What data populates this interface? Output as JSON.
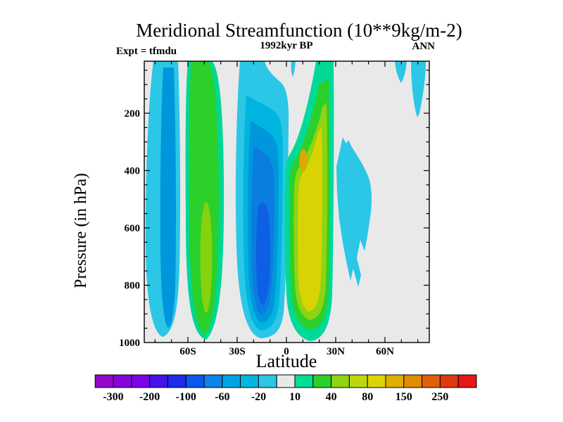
{
  "title": "Meridional Streamfunction (10**9kg/m-2)",
  "subtitle_left": "Expt = tfmdu",
  "subtitle_center": "1992kyr BP",
  "subtitle_right": "ANN",
  "axes": {
    "y_label": "Pressure (in hPa)",
    "x_label": "Latitude",
    "y_tick_labels": [
      "200",
      "400",
      "600",
      "800",
      "1000"
    ],
    "x_tick_labels": [
      "60S",
      "30S",
      "0",
      "30N",
      "60N"
    ]
  },
  "colorbar": {
    "labels": [
      "-300",
      "-200",
      "-100",
      "-60",
      "-20",
      "10",
      "40",
      "80",
      "150",
      "250"
    ],
    "colors": [
      "#9408c8",
      "#8806d4",
      "#7a04e4",
      "#4412e8",
      "#1c2ce8",
      "#0b57ec",
      "#0f83e8",
      "#00a2e4",
      "#00b6e0",
      "#2cc6e6",
      "#e8e8e8",
      "#00dc96",
      "#2bd02b",
      "#8ed413",
      "#bcd80c",
      "#dcd405",
      "#ddb005",
      "#e08c05",
      "#e0600a",
      "#de3a10",
      "#e81616"
    ]
  },
  "plot_colors": {
    "background": "#e9e9e9",
    "cyan_outer": "#2cc6e6",
    "cyan2": "#00b6e0",
    "blue1": "#0096dc",
    "blue2": "#0b7ce0",
    "blue_core": "#0d60e4",
    "mint": "#00d794",
    "green": "#2bd02b",
    "yellow_green": "#85d20e",
    "yellow": "#d8d403",
    "gold": "#dfa706"
  },
  "chart_data": {
    "type": "filled_contour",
    "title": "Meridional Streamfunction (10**9kg/m-2)",
    "experiment": "tfmdu",
    "time_label": "1992kyr BP",
    "season": "ANN",
    "units": "10**9 kg/m-2",
    "grid": "off",
    "x_axis": {
      "label": "Latitude",
      "range_deg": [
        -87,
        87
      ],
      "tick_labels": [
        "60S",
        "30S",
        "0",
        "30N",
        "60N"
      ],
      "tick_values_deg": [
        -60,
        -30,
        0,
        30,
        60
      ],
      "minor_tick_interval_deg": 10
    },
    "y_axis": {
      "label": "Pressure (in hPa)",
      "units": "hPa",
      "inverted": true,
      "top_value": 20,
      "bottom_value": 1000,
      "tick_values": [
        200,
        400,
        600,
        800,
        1000
      ],
      "minor_tick_interval": 50
    },
    "contour_levels": [
      -400,
      -300,
      -250,
      -200,
      -150,
      -100,
      -80,
      -60,
      -40,
      -20,
      -10,
      10,
      20,
      40,
      60,
      80,
      100,
      150,
      200,
      250,
      300,
      400
    ],
    "labeled_levels": [
      -300,
      -200,
      -100,
      -60,
      -20,
      10,
      40,
      80,
      150,
      250
    ],
    "neutral_band": [
      -10,
      10
    ],
    "legend": "horizontal colorbar below plot, 21 cells, labels under every second cell boundary",
    "cells": [
      {
        "name": "antarctic negative cell",
        "sign": "negative",
        "lat_range": [
          "86S",
          "65S"
        ],
        "pressure_range_hPa": [
          20,
          990
        ],
        "extreme_value_approx": -60
      },
      {
        "name": "southern mid-latitude positive cell",
        "sign": "positive",
        "lat_range": [
          "61S",
          "38S"
        ],
        "pressure_range_hPa": [
          20,
          995
        ],
        "extreme_value_approx": 60
      },
      {
        "name": "southern Hadley negative cell",
        "sign": "negative",
        "lat_range": [
          "31S",
          "1N"
        ],
        "pressure_range_hPa": [
          20,
          990
        ],
        "extreme_value_approx": -100,
        "extreme_location": {
          "lat": "13S",
          "pressure_hPa": 700
        }
      },
      {
        "name": "northern Hadley positive cell",
        "sign": "positive",
        "lat_range": [
          "1S",
          "29N"
        ],
        "pressure_range_hPa": [
          20,
          995
        ],
        "extreme_value_approx": 150,
        "extreme_location": {
          "lat": "10N",
          "pressure_hPa": 365
        }
      },
      {
        "name": "northern mid-latitude negative patch",
        "sign": "negative",
        "lat_range": [
          "30N",
          "52N"
        ],
        "pressure_range_hPa": [
          280,
          810
        ],
        "extreme_value_approx": -20
      },
      {
        "name": "northern high-latitude negative streaks",
        "sign": "negative",
        "lat_range": [
          "66N",
          "85N"
        ],
        "pressure_range_hPa": [
          20,
          215
        ],
        "extreme_value_approx": -20
      }
    ]
  }
}
